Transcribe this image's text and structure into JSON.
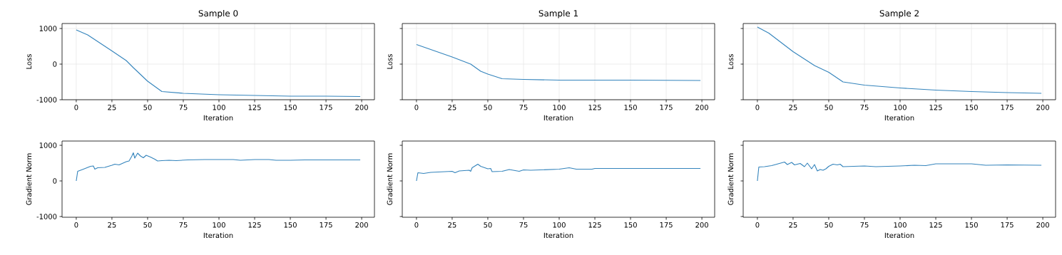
{
  "chart_data": [
    {
      "type": "line",
      "title": "Sample 0",
      "xlabel": "Iteration",
      "ylabel": "Loss",
      "color": "#3484bc",
      "grid": true,
      "x": [
        0,
        8,
        25,
        35,
        40,
        50,
        60,
        75,
        100,
        125,
        150,
        175,
        199
      ],
      "values": [
        960,
        820,
        370,
        100,
        -100,
        -480,
        -770,
        -820,
        -860,
        -880,
        -900,
        -900,
        -910
      ],
      "xlim": [
        -9.95,
        208.95
      ],
      "ylim": [
        -1000,
        1140
      ],
      "xticks": [
        0,
        25,
        50,
        75,
        100,
        125,
        150,
        175,
        200
      ],
      "yticks": [
        -1000,
        0,
        1000
      ]
    },
    {
      "type": "line",
      "title": "Sample 1",
      "xlabel": "Iteration",
      "ylabel": "Loss",
      "color": "#3484bc",
      "grid": true,
      "tick_labels": "x",
      "x": [
        0,
        25,
        38,
        45,
        50,
        60,
        75,
        100,
        150,
        199
      ],
      "values": [
        550,
        200,
        0,
        -200,
        -280,
        -410,
        -430,
        -450,
        -450,
        -460
      ],
      "xlim": [
        -9.95,
        208.95
      ],
      "ylim": [
        -1000,
        1140
      ],
      "xticks": [
        0,
        25,
        50,
        75,
        100,
        125,
        150,
        175,
        200
      ],
      "yticks": [
        -1000,
        0,
        1000
      ]
    },
    {
      "type": "line",
      "title": "Sample 2",
      "xlabel": "Iteration",
      "ylabel": "Loss",
      "color": "#3484bc",
      "grid": true,
      "tick_labels": "x",
      "x": [
        0,
        8,
        25,
        40,
        50,
        60,
        75,
        100,
        125,
        150,
        175,
        199
      ],
      "values": [
        1040,
        870,
        350,
        -40,
        -230,
        -500,
        -590,
        -670,
        -730,
        -770,
        -800,
        -820
      ],
      "xlim": [
        -9.95,
        208.95
      ],
      "ylim": [
        -1000,
        1140
      ],
      "xticks": [
        0,
        25,
        50,
        75,
        100,
        125,
        150,
        175,
        200
      ],
      "yticks": [
        -1000,
        0,
        1000
      ]
    },
    {
      "type": "line",
      "xlabel": "Iteration",
      "ylabel": "Gradient Norm",
      "color": "#3484bc",
      "x": [
        0,
        1,
        5,
        10,
        12,
        13,
        15,
        20,
        25,
        27,
        30,
        35,
        37,
        39,
        40,
        41,
        43,
        45,
        47,
        49,
        52,
        55,
        57,
        60,
        65,
        70,
        78,
        90,
        110,
        115,
        125,
        135,
        140,
        150,
        160,
        199
      ],
      "values": [
        0,
        270,
        330,
        410,
        420,
        330,
        370,
        380,
        440,
        470,
        450,
        540,
        560,
        700,
        790,
        640,
        780,
        700,
        650,
        720,
        670,
        610,
        560,
        570,
        580,
        570,
        590,
        600,
        600,
        580,
        600,
        600,
        580,
        580,
        590,
        590
      ],
      "xlim": [
        -9.95,
        208.95
      ],
      "ylim": [
        -1020,
        1120
      ],
      "xticks": [
        0,
        25,
        50,
        75,
        100,
        125,
        150,
        175,
        200
      ],
      "yticks": [
        -1000,
        0,
        1000
      ]
    },
    {
      "type": "line",
      "xlabel": "Iteration",
      "ylabel": "Gradient Norm",
      "color": "#3484bc",
      "tick_labels": "x",
      "x": [
        0,
        1,
        5,
        10,
        25,
        27,
        30,
        37,
        38,
        39,
        43,
        45,
        50,
        52,
        53,
        60,
        65,
        72,
        75,
        80,
        100,
        107,
        112,
        123,
        125,
        199
      ],
      "values": [
        0,
        230,
        210,
        240,
        270,
        230,
        280,
        300,
        270,
        370,
        470,
        410,
        340,
        350,
        260,
        270,
        320,
        270,
        310,
        300,
        330,
        370,
        330,
        330,
        350,
        350
      ],
      "xlim": [
        -9.95,
        208.95
      ],
      "ylim": [
        -1020,
        1120
      ],
      "xticks": [
        0,
        25,
        50,
        75,
        100,
        125,
        150,
        175,
        200
      ],
      "yticks": [
        -1000,
        0,
        1000
      ]
    },
    {
      "type": "line",
      "xlabel": "Iteration",
      "ylabel": "Gradient Norm",
      "color": "#3484bc",
      "tick_labels": "x",
      "x": [
        0,
        1,
        5,
        10,
        19,
        21,
        24,
        26,
        30,
        33,
        35,
        38,
        40,
        42,
        44,
        46,
        48,
        50,
        53,
        56,
        58,
        60,
        75,
        83,
        100,
        110,
        118,
        125,
        150,
        160,
        175,
        199
      ],
      "values": [
        0,
        390,
        400,
        430,
        530,
        460,
        520,
        450,
        490,
        400,
        500,
        340,
        460,
        280,
        320,
        300,
        340,
        410,
        470,
        450,
        470,
        400,
        420,
        400,
        420,
        440,
        430,
        480,
        480,
        440,
        450,
        440
      ],
      "xlim": [
        -9.95,
        208.95
      ],
      "ylim": [
        -1020,
        1120
      ],
      "xticks": [
        0,
        25,
        50,
        75,
        100,
        125,
        150,
        175,
        200
      ],
      "yticks": [
        -1000,
        0,
        1000
      ]
    }
  ]
}
